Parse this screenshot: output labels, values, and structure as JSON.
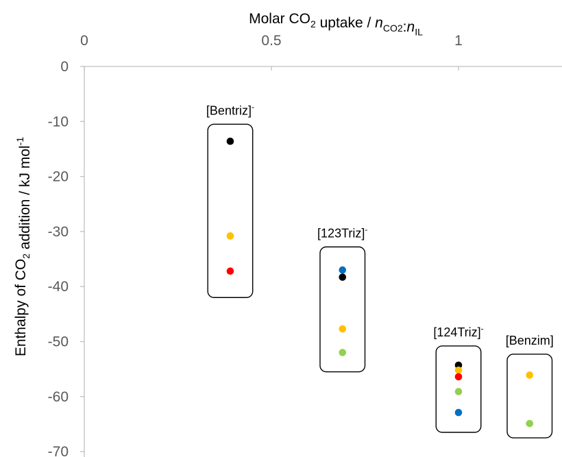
{
  "chart_data": {
    "type": "scatter",
    "title": "",
    "xlabel": {
      "parts": [
        {
          "text": "Molar CO"
        },
        {
          "text": "2",
          "sub": true
        },
        {
          "text": " uptake / "
        },
        {
          "text": "n",
          "italic": true
        },
        {
          "text": "CO2",
          "sub": true
        },
        {
          "text": ":"
        },
        {
          "text": "n",
          "italic": true
        },
        {
          "text": "IL",
          "sub": true
        }
      ]
    },
    "ylabel": {
      "parts": [
        {
          "text": "Enthalpy of CO"
        },
        {
          "text": "2",
          "sub": true
        },
        {
          "text": " addition / kJ mol"
        },
        {
          "text": "-1",
          "sup": true
        }
      ]
    },
    "x_axis_position": "top",
    "xlim": [
      0,
      1.2
    ],
    "ylim": [
      -70,
      0
    ],
    "x_ticks": [
      {
        "value": 0,
        "label": "0"
      },
      {
        "value": 0.5,
        "label": "0.5"
      },
      {
        "value": 1,
        "label": "1"
      }
    ],
    "y_ticks": [
      {
        "value": 0,
        "label": "0"
      },
      {
        "value": -10,
        "label": "-10"
      },
      {
        "value": -20,
        "label": "-20"
      },
      {
        "value": -30,
        "label": "-30"
      },
      {
        "value": -40,
        "label": "-40"
      },
      {
        "value": -50,
        "label": "-50"
      },
      {
        "value": -60,
        "label": "-60"
      },
      {
        "value": -70,
        "label": "-70"
      }
    ],
    "grid": false,
    "legend": "none",
    "colors": {
      "black": "#000000",
      "yellow": "#ffc000",
      "red": "#ff0000",
      "blue": "#0070c0",
      "green": "#92d050"
    },
    "groups": [
      {
        "label": "[Bentriz]",
        "label_sup": "-",
        "x_range": [
          0.33,
          0.45
        ],
        "y_range": [
          -42,
          -10.5
        ],
        "points": [
          {
            "x": 0.39,
            "y": -13.6,
            "color": "black"
          },
          {
            "x": 0.39,
            "y": -30.8,
            "color": "yellow"
          },
          {
            "x": 0.39,
            "y": -37.2,
            "color": "red"
          }
        ]
      },
      {
        "label": "[123Triz]",
        "label_sup": "-",
        "x_range": [
          0.63,
          0.75
        ],
        "y_range": [
          -55.5,
          -32.8
        ],
        "points": [
          {
            "x": 0.69,
            "y": -37.0,
            "color": "blue"
          },
          {
            "x": 0.69,
            "y": -38.3,
            "color": "black"
          },
          {
            "x": 0.69,
            "y": -47.7,
            "color": "yellow"
          },
          {
            "x": 0.69,
            "y": -52.0,
            "color": "green"
          }
        ]
      },
      {
        "label": "[124Triz]",
        "label_sup": "-",
        "x_range": [
          0.94,
          1.06
        ],
        "y_range": [
          -66.5,
          -50.8
        ],
        "points": [
          {
            "x": 1.0,
            "y": -54.3,
            "color": "black"
          },
          {
            "x": 1.0,
            "y": -55.2,
            "color": "yellow"
          },
          {
            "x": 1.0,
            "y": -56.4,
            "color": "red"
          },
          {
            "x": 1.0,
            "y": -59.1,
            "color": "green"
          },
          {
            "x": 1.0,
            "y": -62.9,
            "color": "blue"
          }
        ]
      },
      {
        "label": "[Benzim]",
        "label_sup": "",
        "x_range": [
          1.13,
          1.25
        ],
        "y_range": [
          -67.5,
          -52.3
        ],
        "points": [
          {
            "x": 1.19,
            "y": -56.1,
            "color": "yellow"
          },
          {
            "x": 1.19,
            "y": -64.9,
            "color": "green"
          }
        ]
      }
    ]
  }
}
